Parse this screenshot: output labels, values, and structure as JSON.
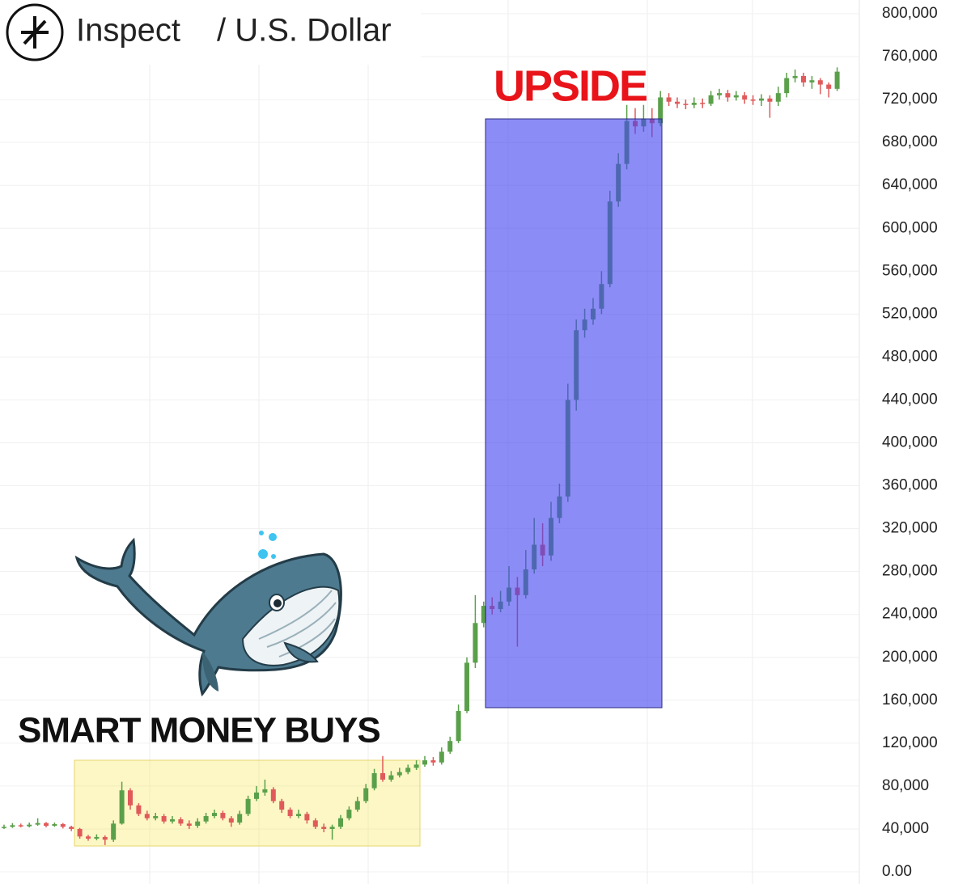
{
  "chart_data": {
    "type": "candlestick",
    "title": "Inspect",
    "subtitle": "/ U.S. Dollar",
    "annotations": [
      "UPSIDE",
      "SMART MONEY BUYS"
    ],
    "up_color": "#5aa04a",
    "down_color": "#e05a5a",
    "grid": true,
    "ylim": [
      0,
      800000
    ],
    "yticks": [
      {
        "value": 0,
        "label": "0.00"
      },
      {
        "value": 40000,
        "label": "40,000"
      },
      {
        "value": 80000,
        "label": "80,000"
      },
      {
        "value": 120000,
        "label": "120,000"
      },
      {
        "value": 160000,
        "label": "160,000"
      },
      {
        "value": 200000,
        "label": "200,000"
      },
      {
        "value": 240000,
        "label": "240,000"
      },
      {
        "value": 280000,
        "label": "280,000"
      },
      {
        "value": 320000,
        "label": "320,000"
      },
      {
        "value": 360000,
        "label": "360,000"
      },
      {
        "value": 400000,
        "label": "400,000"
      },
      {
        "value": 440000,
        "label": "440,000"
      },
      {
        "value": 480000,
        "label": "480,000"
      },
      {
        "value": 520000,
        "label": "520,000"
      },
      {
        "value": 560000,
        "label": "560,000"
      },
      {
        "value": 600000,
        "label": "600,000"
      },
      {
        "value": 640000,
        "label": "640,000"
      },
      {
        "value": 680000,
        "label": "680,000"
      },
      {
        "value": 720000,
        "label": "720,000"
      },
      {
        "value": 760000,
        "label": "760,000"
      },
      {
        "value": 800000,
        "label": "800,000"
      }
    ],
    "open": [
      41000,
      42000,
      43500,
      42500,
      44000,
      45500,
      43000,
      44500,
      42000,
      40000,
      33000,
      31000,
      32500,
      30000,
      45000,
      76000,
      62000,
      54000,
      50000,
      52000,
      47000,
      49000,
      45000,
      43000,
      47000,
      52000,
      55000,
      50000,
      46000,
      54000,
      68000,
      74000,
      77000,
      66000,
      58000,
      52000,
      54000,
      48000,
      42000,
      40000,
      42000,
      50000,
      58000,
      66000,
      78000,
      92000,
      86000,
      90000,
      93000,
      97000,
      100000,
      104000,
      102000,
      112000,
      122000,
      150000,
      195000,
      232000,
      248000,
      245000,
      252000,
      265000,
      258000,
      282000,
      305000,
      295000,
      330000,
      350000,
      440000,
      505000,
      515000,
      525000,
      548000,
      625000,
      660000,
      700000,
      695000,
      702000,
      698000,
      722000,
      718000,
      716000,
      715000,
      717000,
      716000,
      724000,
      726000,
      722000,
      724000,
      720000,
      719000,
      721000,
      718000,
      726000,
      740000,
      742000,
      736000,
      738000,
      734000,
      730000
    ],
    "high": [
      44000,
      45500,
      45000,
      46000,
      50000,
      46500,
      46000,
      45500,
      43000,
      41000,
      34500,
      35000,
      34000,
      48000,
      84000,
      78000,
      64000,
      57000,
      55000,
      54000,
      52000,
      51000,
      48000,
      50000,
      55000,
      58000,
      57000,
      52000,
      57000,
      71000,
      80000,
      86000,
      79000,
      68000,
      60000,
      58000,
      56000,
      50000,
      45000,
      44000,
      53000,
      61000,
      70000,
      82000,
      96000,
      108000,
      94000,
      97000,
      100000,
      104000,
      108000,
      107000,
      116000,
      126000,
      156000,
      200000,
      258000,
      252000,
      256000,
      262000,
      285000,
      275000,
      300000,
      330000,
      325000,
      345000,
      362000,
      455000,
      515000,
      525000,
      535000,
      560000,
      635000,
      670000,
      715000,
      712000,
      715000,
      712000,
      728000,
      726000,
      722000,
      720000,
      722000,
      721000,
      728000,
      730000,
      729000,
      728000,
      727000,
      724000,
      725000,
      724000,
      732000,
      745000,
      748000,
      745000,
      742000,
      740000,
      736000,
      750000
    ],
    "low": [
      40000,
      41000,
      41500,
      41500,
      43000,
      41500,
      42000,
      40500,
      38000,
      31000,
      29000,
      29500,
      25000,
      28000,
      44000,
      58000,
      52000,
      48000,
      48000,
      45000,
      45000,
      43000,
      40000,
      41000,
      45000,
      50000,
      48000,
      42000,
      44000,
      52000,
      66000,
      71000,
      64000,
      55000,
      50000,
      50000,
      45000,
      40000,
      37000,
      30000,
      40000,
      48000,
      56000,
      64000,
      76000,
      84000,
      84000,
      88000,
      91000,
      95000,
      98000,
      99000,
      100000,
      110000,
      120000,
      148000,
      190000,
      228000,
      240000,
      242000,
      248000,
      210000,
      255000,
      278000,
      285000,
      290000,
      325000,
      345000,
      430000,
      498000,
      510000,
      520000,
      545000,
      620000,
      655000,
      688000,
      690000,
      685000,
      695000,
      714000,
      712000,
      711000,
      712000,
      712000,
      714000,
      720000,
      718000,
      719000,
      716000,
      715000,
      714000,
      703000,
      714000,
      722000,
      736000,
      732000,
      730000,
      725000,
      722000,
      728000
    ],
    "close": [
      42000,
      43500,
      42500,
      44000,
      45500,
      43000,
      44500,
      42000,
      40000,
      33000,
      31000,
      32500,
      30000,
      45000,
      76000,
      62000,
      54000,
      50000,
      52000,
      47000,
      49000,
      45000,
      43000,
      47000,
      52000,
      55000,
      50000,
      46000,
      54000,
      68000,
      74000,
      77000,
      66000,
      58000,
      52000,
      54000,
      48000,
      42000,
      40000,
      42000,
      50000,
      58000,
      66000,
      78000,
      92000,
      86000,
      90000,
      93000,
      97000,
      100000,
      104000,
      102000,
      112000,
      122000,
      150000,
      195000,
      232000,
      248000,
      245000,
      252000,
      265000,
      258000,
      282000,
      305000,
      295000,
      330000,
      350000,
      440000,
      505000,
      515000,
      525000,
      548000,
      625000,
      660000,
      700000,
      695000,
      702000,
      698000,
      722000,
      718000,
      716000,
      715000,
      717000,
      716000,
      724000,
      726000,
      722000,
      724000,
      720000,
      719000,
      721000,
      718000,
      726000,
      740000,
      742000,
      736000,
      738000,
      734000,
      730000,
      746000
    ]
  }
}
